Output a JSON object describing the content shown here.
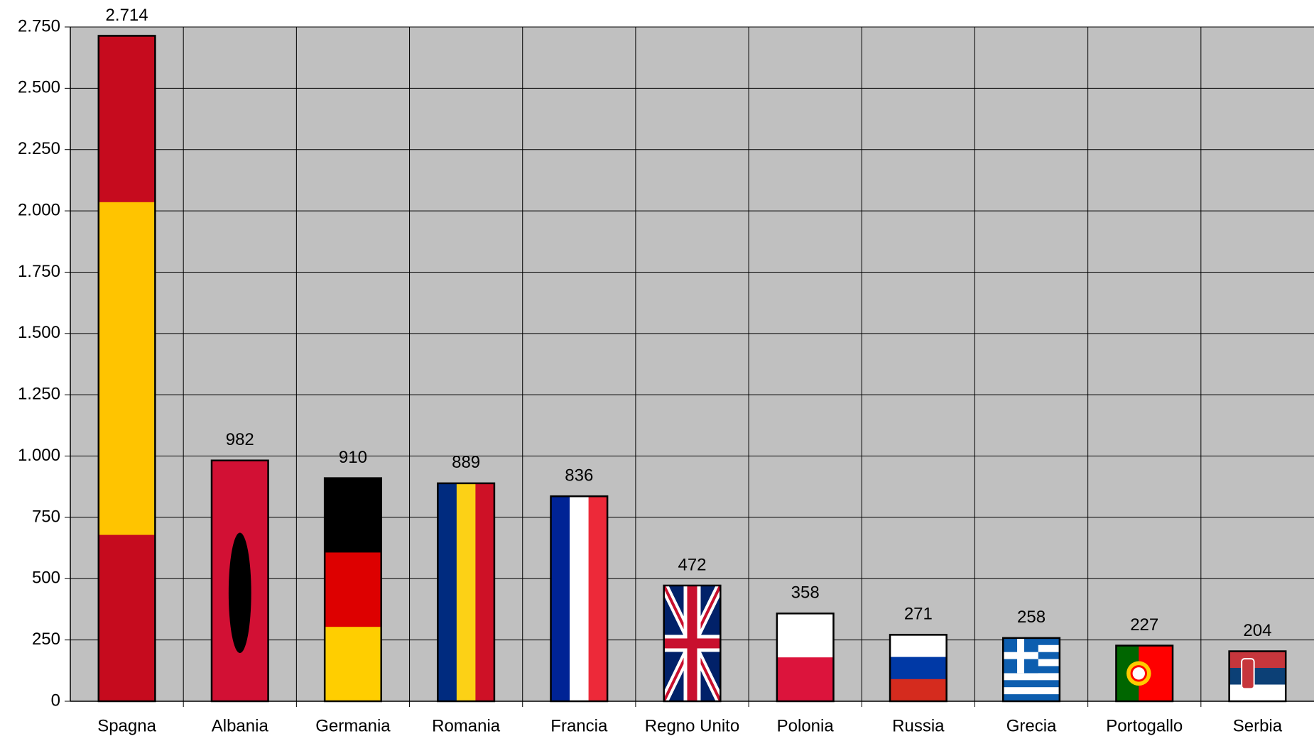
{
  "chart_data": {
    "type": "bar",
    "categories": [
      "Spagna",
      "Albania",
      "Germania",
      "Romania",
      "Francia",
      "Regno Unito",
      "Polonia",
      "Russia",
      "Grecia",
      "Portogallo",
      "Serbia"
    ],
    "values": [
      2714,
      982,
      910,
      889,
      836,
      472,
      358,
      271,
      258,
      227,
      204
    ],
    "value_labels": [
      "2.714",
      "982",
      "910",
      "889",
      "836",
      "472",
      "358",
      "271",
      "258",
      "227",
      "204"
    ],
    "ylim": [
      0,
      2750
    ],
    "yticks": [
      0,
      250,
      500,
      750,
      {
        "value": 1000,
        "label": "1.000"
      },
      {
        "value": 1250,
        "label": "1.250"
      },
      {
        "value": 1500,
        "label": "1.500"
      },
      {
        "value": 1750,
        "label": "1.750"
      },
      {
        "value": 2000,
        "label": "2.000"
      },
      {
        "value": 2250,
        "label": "2.250"
      },
      {
        "value": 2500,
        "label": "2.500"
      },
      {
        "value": 2750,
        "label": "2.750"
      }
    ],
    "grid": true
  }
}
